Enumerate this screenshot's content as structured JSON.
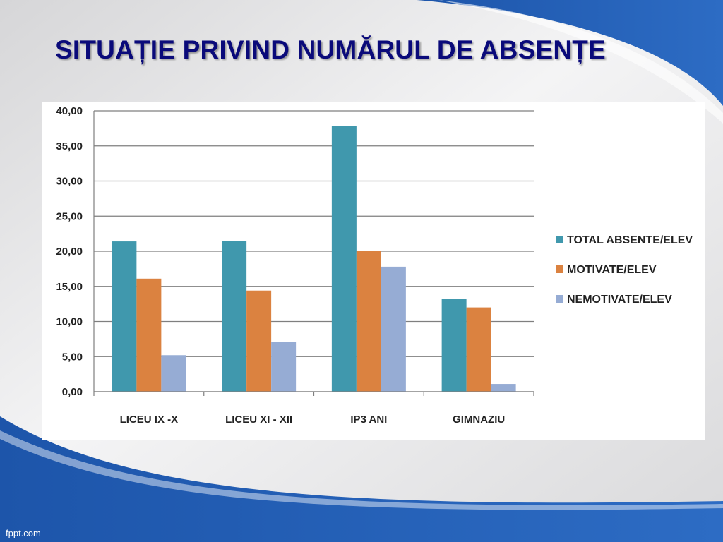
{
  "slide": {
    "title": "SITUAȚIE PRIVIND NUMĂRUL DE ABSENȚE",
    "footer": "fppt.com"
  },
  "colors": {
    "title": "#0a0a7a",
    "band_dark": "#1a4fa0",
    "band_light": "#5a8fd6"
  },
  "chart_data": {
    "type": "bar",
    "categories": [
      "LICEU IX -X",
      "LICEU XI - XII",
      "IP3 ANI",
      "GIMNAZIU"
    ],
    "series": [
      {
        "name": "TOTAL ABSENTE/ELEV",
        "color": "#4098ad",
        "values": [
          21.4,
          21.5,
          37.8,
          13.2
        ]
      },
      {
        "name": "MOTIVATE/ELEV",
        "color": "#db8240",
        "values": [
          16.1,
          14.4,
          20.0,
          12.0
        ]
      },
      {
        "name": "NEMOTIVATE/ELEV",
        "color": "#96acd4",
        "values": [
          5.2,
          7.1,
          17.8,
          1.1
        ]
      }
    ],
    "yticks": [
      "0,00",
      "5,00",
      "10,00",
      "15,00",
      "20,00",
      "25,00",
      "30,00",
      "35,00",
      "40,00"
    ],
    "ylim": [
      0,
      40
    ],
    "grid": true,
    "legend_position": "right"
  }
}
